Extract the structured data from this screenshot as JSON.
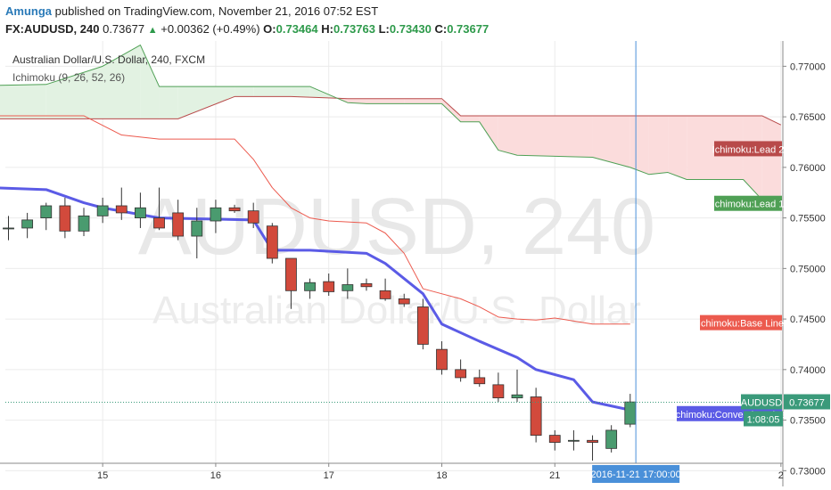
{
  "header": {
    "author": "Amunga",
    "published_text": "published on TradingView.com, November 21, 2016 07:52 EST",
    "symbol_tf": "FX:AUDUSD, 240",
    "last_price": "0.73677",
    "change_arrow": "▲",
    "change": "+0.00362 (+0.49%)",
    "o_label": "O:",
    "o_value": "0.73464",
    "h_label": "H:",
    "h_value": "0.73763",
    "l_label": "L:",
    "l_value": "0.73430",
    "c_label": "C:",
    "c_value": "0.73677"
  },
  "legend": {
    "title": "Australian Dollar/U.S. Dollar, 240, FXCM",
    "indicator": "Ichimoku (9, 26, 52, 26)"
  },
  "watermark": {
    "line1": "AUDUSD, 240",
    "line2": "Australian Dollar/U.S. Dollar"
  },
  "colors": {
    "bull": "#4a9b6f",
    "bear": "#d24a3c",
    "conversion": "#5b5be6",
    "base": "#ec5a4e",
    "lead1": "#4fa055",
    "lead2": "#b84a4a",
    "cloud_green": "#e2f2e2",
    "cloud_red": "#fbdcdc",
    "grid": "#ebebeb",
    "price_line": "#3a9a7a",
    "cursor": "#4a90d9"
  },
  "chart_data": {
    "type": "candlestick",
    "title": "Australian Dollar/U.S. Dollar, 240, FXCM",
    "ylim": [
      0.7295,
      0.7725
    ],
    "y_ticks": [
      "0.77000",
      "0.76500",
      "0.76000",
      "0.75500",
      "0.75000",
      "0.74500",
      "0.74000",
      "0.73500",
      "0.73000"
    ],
    "x_ticks": [
      "15",
      "16",
      "17",
      "18",
      "21",
      "2"
    ],
    "cursor_date_label": "2016-11-21 17:00:00",
    "candles": [
      {
        "o": 0.754,
        "h": 0.7552,
        "l": 0.7528,
        "c": 0.754
      },
      {
        "o": 0.754,
        "h": 0.7555,
        "l": 0.753,
        "c": 0.7548
      },
      {
        "o": 0.755,
        "h": 0.7565,
        "l": 0.7538,
        "c": 0.7562
      },
      {
        "o": 0.7562,
        "h": 0.757,
        "l": 0.753,
        "c": 0.7537
      },
      {
        "o": 0.7537,
        "h": 0.756,
        "l": 0.7532,
        "c": 0.7552
      },
      {
        "o": 0.7552,
        "h": 0.757,
        "l": 0.7545,
        "c": 0.7562
      },
      {
        "o": 0.7562,
        "h": 0.758,
        "l": 0.7548,
        "c": 0.7555
      },
      {
        "o": 0.755,
        "h": 0.7575,
        "l": 0.754,
        "c": 0.756
      },
      {
        "o": 0.755,
        "h": 0.758,
        "l": 0.7538,
        "c": 0.754
      },
      {
        "o": 0.7555,
        "h": 0.7568,
        "l": 0.7528,
        "c": 0.7532
      },
      {
        "o": 0.7532,
        "h": 0.756,
        "l": 0.751,
        "c": 0.7547
      },
      {
        "o": 0.7547,
        "h": 0.7568,
        "l": 0.7535,
        "c": 0.756
      },
      {
        "o": 0.756,
        "h": 0.7563,
        "l": 0.7555,
        "c": 0.7557
      },
      {
        "o": 0.7557,
        "h": 0.7565,
        "l": 0.754,
        "c": 0.7545
      },
      {
        "o": 0.7542,
        "h": 0.7545,
        "l": 0.7505,
        "c": 0.751
      },
      {
        "o": 0.751,
        "h": 0.751,
        "l": 0.746,
        "c": 0.7478
      },
      {
        "o": 0.7478,
        "h": 0.749,
        "l": 0.747,
        "c": 0.7486
      },
      {
        "o": 0.7487,
        "h": 0.7495,
        "l": 0.7473,
        "c": 0.7477
      },
      {
        "o": 0.7478,
        "h": 0.75,
        "l": 0.747,
        "c": 0.7484
      },
      {
        "o": 0.7485,
        "h": 0.749,
        "l": 0.7478,
        "c": 0.7482
      },
      {
        "o": 0.7478,
        "h": 0.749,
        "l": 0.7468,
        "c": 0.747
      },
      {
        "o": 0.747,
        "h": 0.7475,
        "l": 0.7462,
        "c": 0.7465
      },
      {
        "o": 0.7462,
        "h": 0.747,
        "l": 0.742,
        "c": 0.7425
      },
      {
        "o": 0.742,
        "h": 0.7428,
        "l": 0.7395,
        "c": 0.74
      },
      {
        "o": 0.74,
        "h": 0.741,
        "l": 0.7388,
        "c": 0.7392
      },
      {
        "o": 0.7392,
        "h": 0.74,
        "l": 0.7383,
        "c": 0.7386
      },
      {
        "o": 0.7385,
        "h": 0.7397,
        "l": 0.7368,
        "c": 0.7372
      },
      {
        "o": 0.7372,
        "h": 0.74,
        "l": 0.7368,
        "c": 0.7375
      },
      {
        "o": 0.7373,
        "h": 0.7382,
        "l": 0.7328,
        "c": 0.7335
      },
      {
        "o": 0.7335,
        "h": 0.734,
        "l": 0.732,
        "c": 0.7328
      },
      {
        "o": 0.733,
        "h": 0.734,
        "l": 0.732,
        "c": 0.733
      },
      {
        "o": 0.733,
        "h": 0.7335,
        "l": 0.731,
        "c": 0.7328
      },
      {
        "o": 0.7322,
        "h": 0.7345,
        "l": 0.7318,
        "c": 0.734
      },
      {
        "o": 0.7346,
        "h": 0.7376,
        "l": 0.7343,
        "c": 0.7368
      }
    ],
    "conversion_line": [
      [
        -1,
        0.758
      ],
      [
        2,
        0.7578
      ],
      [
        4,
        0.7565
      ],
      [
        5,
        0.756
      ],
      [
        8,
        0.755
      ],
      [
        13,
        0.7548
      ],
      [
        14,
        0.7518
      ],
      [
        16,
        0.7518
      ],
      [
        19,
        0.7515
      ],
      [
        20,
        0.7505
      ],
      [
        22,
        0.7475
      ],
      [
        23,
        0.7445
      ],
      [
        25,
        0.7428
      ],
      [
        27,
        0.7412
      ],
      [
        28,
        0.74
      ],
      [
        30,
        0.739
      ],
      [
        31,
        0.7368
      ],
      [
        33,
        0.736
      ]
    ],
    "base_line": [
      [
        -1,
        0.7651
      ],
      [
        4,
        0.7651
      ],
      [
        6,
        0.7632
      ],
      [
        8,
        0.7628
      ],
      [
        12,
        0.7628
      ],
      [
        13,
        0.7608
      ],
      [
        14,
        0.758
      ],
      [
        15,
        0.756
      ],
      [
        16,
        0.755
      ],
      [
        17,
        0.7547
      ],
      [
        19,
        0.7545
      ],
      [
        20,
        0.7535
      ],
      [
        21,
        0.7515
      ],
      [
        22,
        0.748
      ],
      [
        24,
        0.747
      ],
      [
        25,
        0.7462
      ],
      [
        26,
        0.7452
      ],
      [
        27,
        0.745
      ],
      [
        28,
        0.7449
      ],
      [
        29,
        0.7451
      ],
      [
        31,
        0.7445
      ],
      [
        33,
        0.7445
      ]
    ],
    "lead1": [
      [
        -1,
        0.7681
      ],
      [
        2,
        0.7682
      ],
      [
        5,
        0.77
      ],
      [
        7,
        0.7721
      ],
      [
        8,
        0.768
      ],
      [
        13,
        0.768
      ],
      [
        16,
        0.768
      ],
      [
        18,
        0.7664
      ],
      [
        19,
        0.7663
      ],
      [
        23,
        0.7663
      ],
      [
        24,
        0.7645
      ],
      [
        25,
        0.7645
      ],
      [
        26,
        0.7617
      ],
      [
        27,
        0.7612
      ],
      [
        31,
        0.761
      ],
      [
        33,
        0.76
      ],
      [
        34,
        0.7593
      ],
      [
        35,
        0.7595
      ],
      [
        36,
        0.7588
      ],
      [
        39,
        0.7588
      ],
      [
        40,
        0.7568
      ]
    ],
    "lead2": [
      [
        -1,
        0.7648
      ],
      [
        9,
        0.7648
      ],
      [
        12,
        0.767
      ],
      [
        15,
        0.767
      ],
      [
        18,
        0.7668
      ],
      [
        21,
        0.7668
      ],
      [
        23,
        0.7668
      ],
      [
        24,
        0.7651
      ],
      [
        40,
        0.7651
      ],
      [
        41,
        0.7642
      ]
    ],
    "labels": {
      "lead2": "Ichimoku:Lead 2",
      "lead1": "Ichimoku:Lead 1",
      "base": "Ichimoku:Base Line",
      "conversion": "Ichimoku:Conversion Line",
      "symbol": "AUDUSD",
      "price": "0.73677",
      "countdown": "1:08:05"
    }
  }
}
